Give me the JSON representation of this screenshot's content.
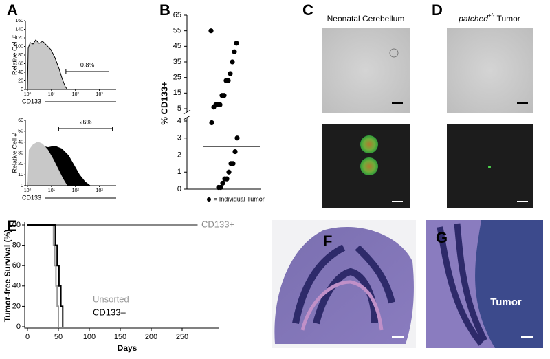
{
  "figure": {
    "panel_labels": [
      "A",
      "B",
      "C",
      "D",
      "E",
      "F",
      "G"
    ],
    "C_title": "Neonatal Cerebellum",
    "D_title_gene": "patched",
    "D_title_sup": "+/-",
    "D_title_rest": " Tumor",
    "G_annotation": "Tumor"
  },
  "chart_data": [
    {
      "type": "histogram",
      "ylabel": "Relative Cell #",
      "xlabel": "CD133",
      "log_x": true,
      "xlim": [
        1,
        5000
      ],
      "xticks": [
        {
          "value": 1,
          "label": "10⁰"
        },
        {
          "value": 10,
          "label": "10¹"
        },
        {
          "value": 100,
          "label": "10²"
        },
        {
          "value": 1000,
          "label": "10³"
        }
      ],
      "ylim": [
        0,
        160
      ],
      "yticks": [
        0,
        20,
        40,
        60,
        80,
        100,
        120,
        140,
        160
      ],
      "gate": [
        40,
        2500
      ],
      "gate_label": "0.8%"
    },
    {
      "type": "histogram",
      "ylabel": "Relative Cell #",
      "xlabel": "CD133",
      "log_x": true,
      "xlim": [
        1,
        5000
      ],
      "xticks": [
        {
          "value": 1,
          "label": "10⁰"
        },
        {
          "value": 10,
          "label": "10¹"
        },
        {
          "value": 100,
          "label": "10²"
        },
        {
          "value": 1000,
          "label": "10³"
        }
      ],
      "ylim": [
        0,
        60
      ],
      "yticks": [
        0,
        10,
        20,
        30,
        40,
        50,
        60
      ],
      "gate": [
        20,
        3500
      ],
      "gate_label": "26%"
    },
    {
      "type": "dot",
      "ylabel": "% CD133+",
      "legend": "= Individual Tumor",
      "ylim": [
        0,
        65
      ],
      "axis_break": [
        4,
        5
      ],
      "yticks": [
        0,
        1,
        2,
        3,
        4,
        5,
        15,
        25,
        35,
        45,
        55,
        65
      ],
      "values": [
        55,
        47,
        41.5,
        35,
        27.5,
        23,
        23,
        13.5,
        13.5,
        7.5,
        7.5,
        7.5,
        6,
        3.9,
        3,
        2.2,
        1.5,
        1.5,
        1,
        0.6,
        0.6,
        0.35,
        0.1,
        0.1
      ],
      "mean": 2.5,
      "color": "#000000"
    },
    {
      "type": "step",
      "xlabel": "Days",
      "ylabel": "Tumor-free Survival (%)",
      "xlim": [
        0,
        300
      ],
      "xticks": [
        0,
        50,
        100,
        150,
        200,
        250
      ],
      "ylim": [
        0,
        100
      ],
      "yticks": [
        0,
        20,
        40,
        60,
        80,
        100
      ],
      "series": [
        {
          "name": "CD133+",
          "color": "#888888",
          "x": [
            0,
            275
          ],
          "values": [
            100,
            100
          ]
        },
        {
          "name": "Unsorted",
          "color": "#999999",
          "x": [
            0,
            42,
            44,
            46,
            48,
            50
          ],
          "values": [
            100,
            80,
            60,
            40,
            20,
            0
          ]
        },
        {
          "name": "CD133–",
          "color": "#000000",
          "x": [
            0,
            45,
            48,
            51,
            54,
            57
          ],
          "values": [
            100,
            80,
            60,
            40,
            20,
            0
          ]
        }
      ]
    }
  ]
}
